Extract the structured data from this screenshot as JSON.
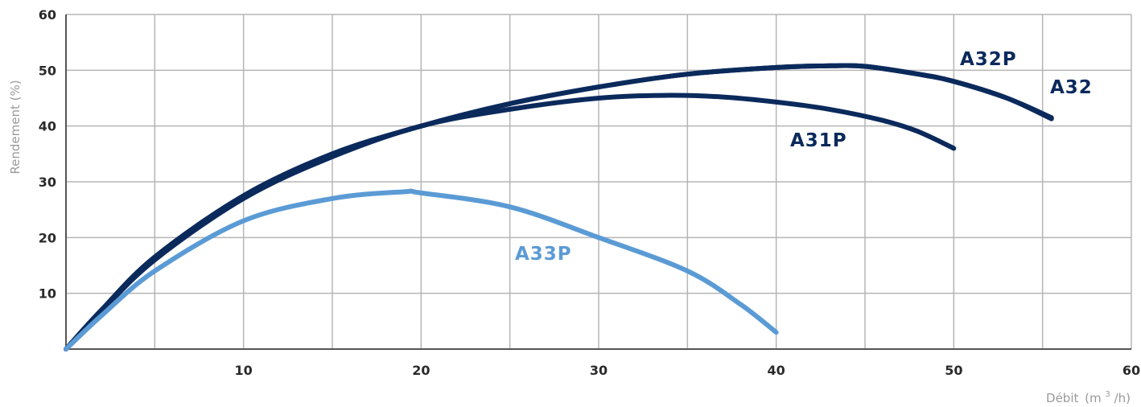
{
  "chart_data": {
    "type": "line",
    "title": "",
    "xlabel": "Débit",
    "xlabel_unit_open": "(m",
    "xlabel_unit_sup": "3",
    "xlabel_unit_close": "/h)",
    "ylabel": "Rendement (%)",
    "xlim": [
      0,
      60
    ],
    "ylim": [
      0,
      60
    ],
    "x_ticks": [
      10,
      20,
      30,
      40,
      50,
      60
    ],
    "y_ticks": [
      10,
      20,
      30,
      40,
      50,
      60
    ],
    "grid": true,
    "legend": "inline labels",
    "series": [
      {
        "name": "A32P",
        "color": "#0b2a5c",
        "points": [
          [
            0,
            0
          ],
          [
            2,
            7
          ],
          [
            5,
            16.5
          ],
          [
            10,
            27.5
          ],
          [
            15,
            35
          ],
          [
            20,
            40
          ],
          [
            25,
            44
          ],
          [
            30,
            47
          ],
          [
            35,
            49.3
          ],
          [
            40,
            50.5
          ],
          [
            43,
            50.8
          ],
          [
            45,
            50.7
          ],
          [
            48,
            49.3
          ],
          [
            50,
            48
          ],
          [
            53,
            45
          ],
          [
            55.5,
            41.5
          ]
        ]
      },
      {
        "name": "A32",
        "color": "#0b2a5c",
        "points": [
          [
            0,
            0
          ],
          [
            2,
            7
          ],
          [
            5,
            16.5
          ],
          [
            10,
            27.5
          ],
          [
            15,
            35
          ],
          [
            20,
            40
          ],
          [
            25,
            44
          ],
          [
            30,
            47
          ],
          [
            35,
            49.3
          ],
          [
            40,
            50.5
          ],
          [
            43,
            50.8
          ],
          [
            45,
            50.7
          ],
          [
            48,
            49.3
          ],
          [
            50,
            48
          ],
          [
            53,
            45
          ],
          [
            55.5,
            41.3
          ]
        ]
      },
      {
        "name": "A31P",
        "color": "#0b2a5c",
        "points": [
          [
            0,
            0
          ],
          [
            2,
            6.8
          ],
          [
            5,
            16
          ],
          [
            10,
            27
          ],
          [
            15,
            34.5
          ],
          [
            20,
            40
          ],
          [
            25,
            43
          ],
          [
            30,
            45
          ],
          [
            34,
            45.5
          ],
          [
            37,
            45.2
          ],
          [
            40,
            44.3
          ],
          [
            43,
            43
          ],
          [
            46,
            41
          ],
          [
            48,
            39
          ],
          [
            50,
            36
          ]
        ]
      },
      {
        "name": "A33P",
        "color": "#5b9bd5",
        "points": [
          [
            0,
            0
          ],
          [
            2,
            6
          ],
          [
            5,
            14
          ],
          [
            10,
            23
          ],
          [
            15,
            27
          ],
          [
            19,
            28.2
          ],
          [
            20,
            28
          ],
          [
            25,
            25.5
          ],
          [
            30,
            20
          ],
          [
            35,
            14
          ],
          [
            38,
            8
          ],
          [
            40,
            3
          ]
        ]
      }
    ]
  }
}
